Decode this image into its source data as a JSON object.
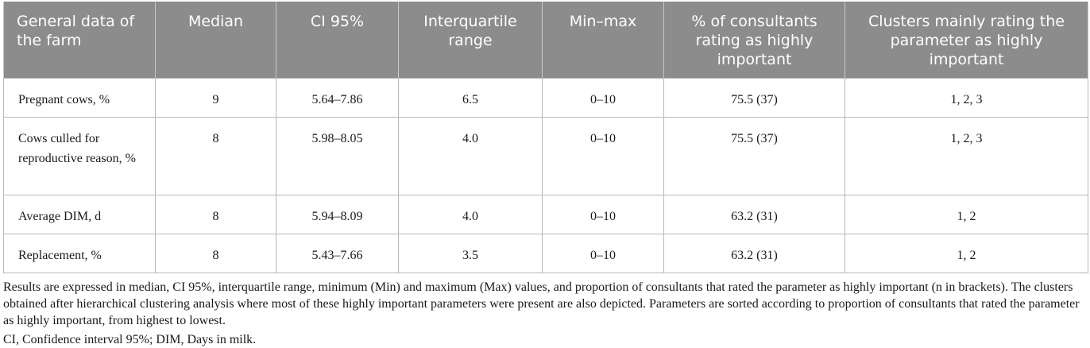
{
  "table": {
    "headers": [
      "General data of the farm",
      "Median",
      "CI 95%",
      "Interquartile range",
      "Min–max",
      "% of consultants rating as highly important",
      "Clusters mainly rating the parameter as highly important"
    ],
    "rows": [
      [
        "Pregnant cows, %",
        "9",
        "5.64–7.86",
        "6.5",
        "0–10",
        "75.5 (37)",
        "1, 2, 3"
      ],
      [
        "Cows culled for reproductive reason, %",
        "8",
        "5.98–8.05",
        "4.0",
        "0–10",
        "75.5 (37)",
        "1, 2, 3"
      ],
      [
        "Average DIM, d",
        "8",
        "5.94–8.09",
        "4.0",
        "0–10",
        "63.2 (31)",
        "1, 2"
      ],
      [
        "Replacement, %",
        "8",
        "5.43–7.66",
        "3.5",
        "0–10",
        "63.2 (31)",
        "1, 2"
      ]
    ]
  },
  "footnote": "Results are expressed in median, CI 95%, interquartile range, minimum (Min) and maximum (Max) values, and proportion of consultants that rated the parameter as highly important (n in brackets). The clusters obtained after hierarchical clustering analysis where most of these highly important parameters were present are also depicted. Parameters are sorted according to proportion of consultants that rated the parameter as highly important, from highest to lowest.",
  "abbreviations": "CI, Confidence interval 95%; DIM, Days in milk."
}
